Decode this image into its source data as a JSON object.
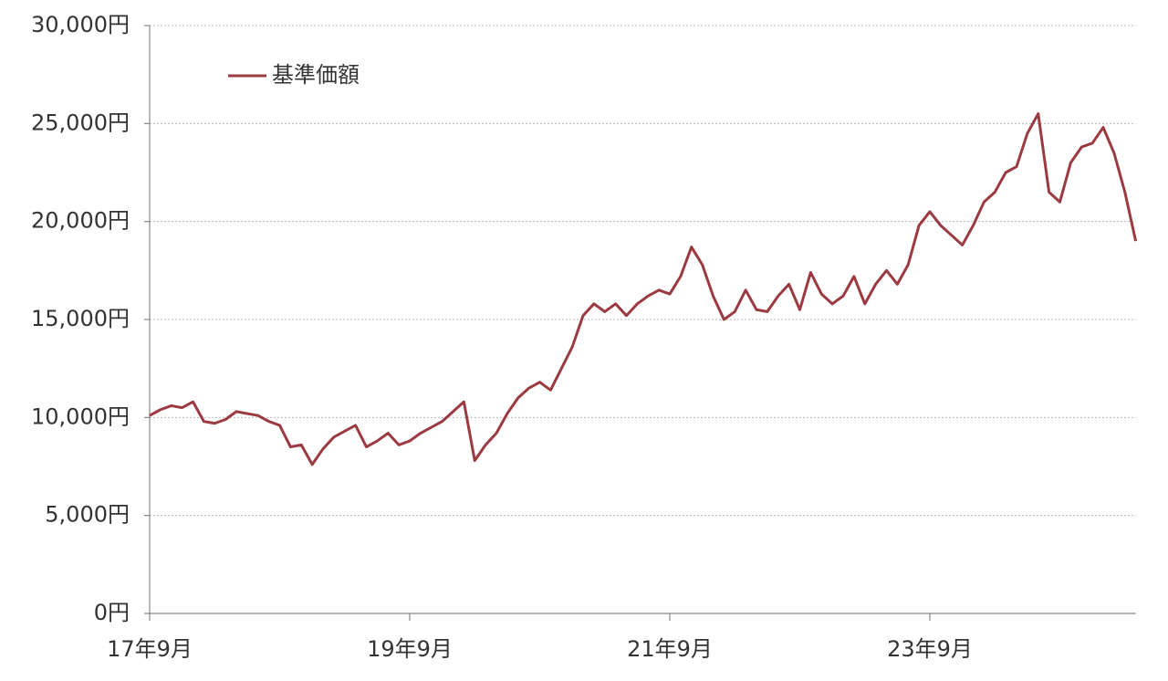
{
  "chart_data": {
    "type": "line",
    "categories": [
      "17年9月",
      null,
      null,
      null,
      null,
      null,
      null,
      null,
      null,
      null,
      null,
      null,
      null,
      null,
      null,
      null,
      null,
      null,
      null,
      null,
      null,
      null,
      null,
      null,
      "19年9月",
      null,
      null,
      null,
      null,
      null,
      null,
      null,
      null,
      null,
      null,
      null,
      null,
      null,
      null,
      null,
      null,
      null,
      null,
      null,
      null,
      null,
      null,
      null,
      "21年9月",
      null,
      null,
      null,
      null,
      null,
      null,
      null,
      null,
      null,
      null,
      null,
      null,
      null,
      null,
      null,
      null,
      null,
      null,
      null,
      null,
      null,
      null,
      null,
      "23年9月",
      null,
      null,
      null,
      null,
      null,
      null,
      null,
      null,
      null,
      null,
      null,
      null,
      null,
      null,
      null,
      null,
      null,
      null,
      null
    ],
    "series": [
      {
        "name": "基準価額",
        "color": "#9b3a41",
        "values": [
          10100,
          10400,
          10600,
          10500,
          10800,
          9800,
          9700,
          9900,
          10300,
          10200,
          10100,
          9800,
          9600,
          8500,
          8600,
          7600,
          8400,
          9000,
          9300,
          9600,
          8500,
          8800,
          9200,
          8600,
          8800,
          9200,
          9500,
          9800,
          10300,
          10800,
          7800,
          8600,
          9200,
          10200,
          11000,
          11500,
          11800,
          11400,
          12500,
          13600,
          15200,
          15800,
          15400,
          15800,
          15200,
          15800,
          16200,
          16500,
          16300,
          17200,
          18700,
          17800,
          16200,
          15000,
          15400,
          16500,
          15500,
          15400,
          16200,
          16800,
          15500,
          17400,
          16300,
          15800,
          16200,
          17200,
          15800,
          16800,
          17500,
          16800,
          17800,
          19800,
          20500,
          19800,
          19300,
          18800,
          19800,
          21000,
          21500,
          22500,
          22800,
          24500,
          25500,
          21500,
          21000,
          23000,
          23800,
          24000,
          24800,
          23500,
          21500,
          19000
        ]
      }
    ],
    "ylim": [
      0,
      30000
    ],
    "yticks": [
      {
        "value": 0,
        "label": "0円"
      },
      {
        "value": 5000,
        "label": "5,000円"
      },
      {
        "value": 10000,
        "label": "10,000円"
      },
      {
        "value": 15000,
        "label": "15,000円"
      },
      {
        "value": 20000,
        "label": "20,000円"
      },
      {
        "value": 25000,
        "label": "25,000円"
      },
      {
        "value": 30000,
        "label": "30,000円"
      }
    ],
    "grid": true,
    "legend": "upper left"
  }
}
